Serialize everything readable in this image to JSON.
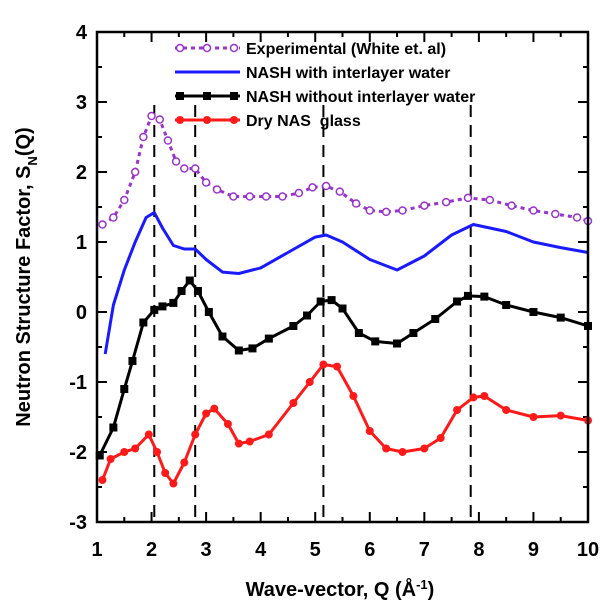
{
  "chart_data": {
    "type": "line",
    "xlabel": [
      "Wave-vector, Q (Å",
      "-1",
      ")"
    ],
    "ylabel": [
      "Neutron Structure Factor, S",
      "N",
      "(Q)"
    ],
    "xlim": [
      1,
      10
    ],
    "xticks": [
      1,
      2,
      3,
      4,
      5,
      6,
      7,
      8,
      9,
      10
    ],
    "ylim": [
      -3,
      4
    ],
    "yticks": [
      -3,
      -2,
      -1,
      0,
      1,
      2,
      3,
      4
    ],
    "vlines": [
      2.05,
      2.8,
      5.15,
      7.85
    ],
    "series": [
      {
        "name": "Experimental (White et. al)",
        "color": "#9933cc",
        "dash": true,
        "marker": "circle-open",
        "x": [
          1.1,
          1.3,
          1.5,
          1.7,
          1.85,
          2.0,
          2.15,
          2.3,
          2.45,
          2.6,
          2.8,
          3.0,
          3.2,
          3.5,
          3.8,
          4.1,
          4.4,
          4.7,
          4.95,
          5.2,
          5.45,
          5.75,
          6.0,
          6.3,
          6.6,
          7.0,
          7.4,
          7.8,
          8.2,
          8.6,
          9.0,
          9.4,
          9.8,
          10
        ],
        "values": [
          1.25,
          1.35,
          1.6,
          2.0,
          2.5,
          2.8,
          2.75,
          2.45,
          2.15,
          2.05,
          2.05,
          1.85,
          1.75,
          1.65,
          1.65,
          1.65,
          1.65,
          1.7,
          1.78,
          1.8,
          1.72,
          1.55,
          1.45,
          1.43,
          1.45,
          1.52,
          1.57,
          1.63,
          1.6,
          1.52,
          1.45,
          1.4,
          1.35,
          1.3
        ]
      },
      {
        "name": "NASH with interlayer water",
        "color": "#1a1aff",
        "dash": false,
        "marker": "none",
        "x": [
          1.15,
          1.3,
          1.5,
          1.7,
          1.9,
          2.05,
          2.2,
          2.4,
          2.6,
          2.8,
          3.0,
          3.3,
          3.6,
          4.0,
          4.5,
          5.0,
          5.2,
          5.5,
          6.0,
          6.5,
          7.0,
          7.5,
          7.9,
          8.5,
          9.0,
          9.5,
          10
        ],
        "values": [
          -0.6,
          0.1,
          0.6,
          1.0,
          1.35,
          1.42,
          1.2,
          0.95,
          0.9,
          0.9,
          0.75,
          0.57,
          0.55,
          0.63,
          0.85,
          1.07,
          1.1,
          1.0,
          0.75,
          0.6,
          0.8,
          1.1,
          1.25,
          1.15,
          1.0,
          0.92,
          0.85
        ]
      },
      {
        "name": "NASH without interlayer water",
        "color": "#000000",
        "dash": false,
        "marker": "square",
        "x": [
          1.05,
          1.3,
          1.5,
          1.65,
          1.85,
          2.05,
          2.2,
          2.4,
          2.55,
          2.7,
          2.85,
          3.05,
          3.3,
          3.6,
          3.85,
          4.15,
          4.6,
          4.85,
          5.1,
          5.3,
          5.5,
          5.8,
          6.1,
          6.5,
          6.8,
          7.2,
          7.6,
          7.8,
          8.1,
          8.5,
          9.0,
          9.5,
          10
        ],
        "values": [
          -2.05,
          -1.65,
          -1.1,
          -0.7,
          -0.15,
          0.03,
          0.08,
          0.13,
          0.3,
          0.45,
          0.3,
          0.0,
          -0.35,
          -0.55,
          -0.52,
          -0.38,
          -0.2,
          -0.05,
          0.15,
          0.17,
          0.05,
          -0.3,
          -0.42,
          -0.45,
          -0.3,
          -0.1,
          0.15,
          0.23,
          0.22,
          0.1,
          0.0,
          -0.08,
          -0.2
        ]
      },
      {
        "name": "Dry NAS  glass",
        "color": "#ff1a1a",
        "dash": false,
        "marker": "circle",
        "x": [
          1.1,
          1.25,
          1.5,
          1.7,
          1.95,
          2.1,
          2.25,
          2.4,
          2.6,
          2.8,
          3.0,
          3.15,
          3.4,
          3.6,
          3.8,
          4.15,
          4.6,
          4.9,
          5.15,
          5.4,
          5.7,
          6.0,
          6.3,
          6.6,
          7.0,
          7.3,
          7.6,
          7.9,
          8.1,
          8.5,
          9.0,
          9.5,
          10
        ],
        "values": [
          -2.4,
          -2.1,
          -2.0,
          -1.95,
          -1.75,
          -2.0,
          -2.3,
          -2.45,
          -2.15,
          -1.75,
          -1.45,
          -1.38,
          -1.6,
          -1.88,
          -1.85,
          -1.75,
          -1.3,
          -1.0,
          -0.75,
          -0.78,
          -1.2,
          -1.7,
          -1.95,
          -2.0,
          -1.95,
          -1.8,
          -1.4,
          -1.22,
          -1.2,
          -1.4,
          -1.5,
          -1.48,
          -1.55
        ]
      }
    ]
  }
}
